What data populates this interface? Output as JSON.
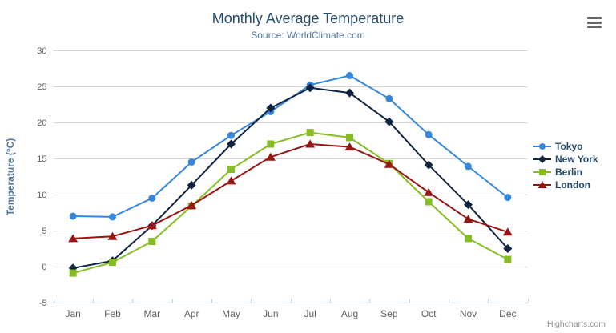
{
  "chart": {
    "title": "Monthly Average Temperature",
    "subtitle": "Source: WorldClimate.com",
    "y_axis_title": "Temperature (°C)",
    "credits": "Highcharts.com",
    "menu_icon": "hamburger-icon"
  },
  "chart_data": {
    "type": "line",
    "title": "Monthly Average Temperature",
    "subtitle": "Source: WorldClimate.com",
    "xlabel": "",
    "ylabel": "Temperature (°C)",
    "ylim": [
      -5,
      30
    ],
    "y_ticks": [
      -5,
      0,
      5,
      10,
      15,
      20,
      25,
      30
    ],
    "grid": true,
    "legend_position": "right",
    "categories": [
      "Jan",
      "Feb",
      "Mar",
      "Apr",
      "May",
      "Jun",
      "Jul",
      "Aug",
      "Sep",
      "Oct",
      "Nov",
      "Dec"
    ],
    "series": [
      {
        "name": "Tokyo",
        "color": "#3687dc",
        "marker": "circle",
        "values": [
          7.0,
          6.9,
          9.5,
          14.5,
          18.2,
          21.5,
          25.2,
          26.5,
          23.3,
          18.3,
          13.9,
          9.6
        ]
      },
      {
        "name": "New York",
        "color": "#0f2440",
        "marker": "diamond",
        "values": [
          -0.2,
          0.8,
          5.7,
          11.3,
          17.0,
          22.0,
          24.8,
          24.1,
          20.1,
          14.1,
          8.6,
          2.5
        ]
      },
      {
        "name": "Berlin",
        "color": "#86bd24",
        "marker": "square",
        "values": [
          -0.9,
          0.6,
          3.5,
          8.4,
          13.5,
          17.0,
          18.6,
          17.9,
          14.3,
          9.0,
          3.9,
          1.0
        ]
      },
      {
        "name": "London",
        "color": "#9a1414",
        "marker": "triangle",
        "values": [
          3.9,
          4.2,
          5.7,
          8.5,
          11.9,
          15.2,
          17.0,
          16.6,
          14.2,
          10.3,
          6.6,
          4.8
        ]
      }
    ]
  },
  "style_colors": {
    "grid": "#d4d4d4",
    "axis_line": "#c0d0e0",
    "tick": "#c0d0e0",
    "axis_label": "#606060",
    "title": "#274b6d",
    "subtitle": "#4d759e",
    "axis_title": "#4d759e",
    "credits": "#909090",
    "menu_icon": "#666666"
  }
}
